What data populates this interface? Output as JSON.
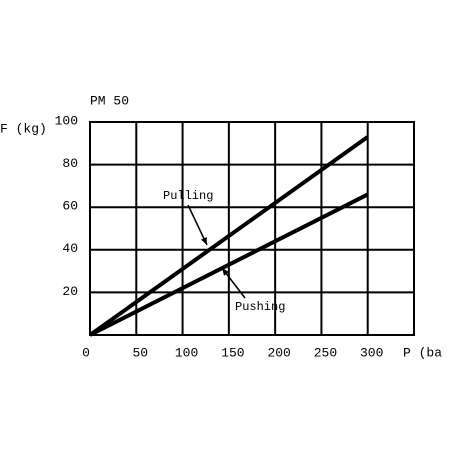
{
  "chart_data": {
    "type": "line",
    "title": "PM 50",
    "x_label": "P (ba",
    "y_label": "F (kg)",
    "x": [
      0,
      300
    ],
    "series": [
      {
        "name": "Pulling",
        "color": "#000000",
        "values": [
          0,
          93
        ]
      },
      {
        "name": "Pushing",
        "color": "#000000",
        "values": [
          0,
          66
        ]
      }
    ],
    "xlim": [
      0,
      350
    ],
    "xticks": [
      0,
      50,
      100,
      150,
      200,
      250,
      300
    ],
    "ylim": [
      0,
      100
    ],
    "yticks": [
      20,
      40,
      60,
      80,
      100
    ],
    "grid": true
  }
}
